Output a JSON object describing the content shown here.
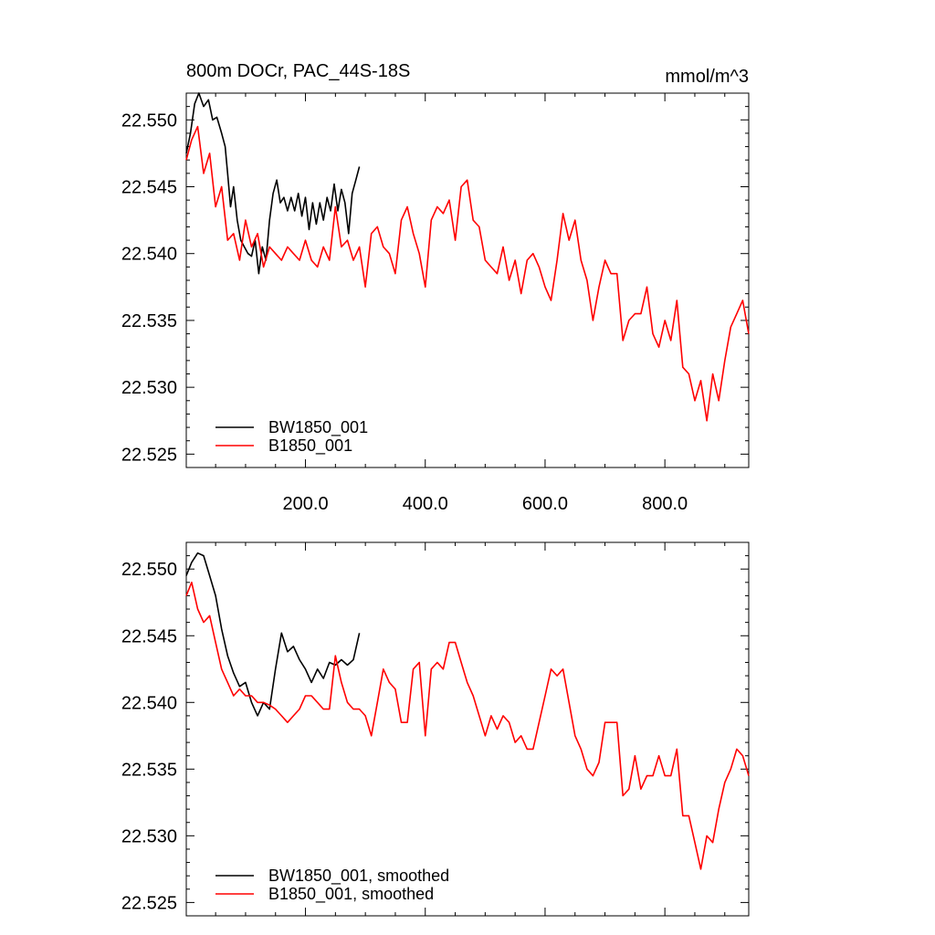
{
  "chart_data": [
    {
      "type": "line",
      "title": "800m DOCr, PAC_44S-18S",
      "units": "mmol/m^3",
      "xlim": [
        1,
        940
      ],
      "ylim": [
        22.524,
        22.552
      ],
      "xticks": [
        200,
        400,
        600,
        800
      ],
      "xtick_labels": [
        "200.0",
        "400.0",
        "600.0",
        "800.0"
      ],
      "yticks": [
        22.525,
        22.53,
        22.535,
        22.54,
        22.545,
        22.55
      ],
      "ytick_labels": [
        "22.525",
        "22.530",
        "22.535",
        "22.540",
        "22.545",
        "22.550"
      ],
      "legend_position": "bottom-left",
      "series": [
        {
          "name": "BW1850_001",
          "color": "#000000",
          "x": [
            1,
            8,
            15,
            22,
            30,
            38,
            45,
            52,
            60,
            66,
            70,
            75,
            80,
            86,
            92,
            98,
            104,
            110,
            116,
            122,
            128,
            134,
            140,
            146,
            152,
            158,
            164,
            170,
            176,
            182,
            188,
            194,
            200,
            206,
            212,
            218,
            224,
            230,
            236,
            242,
            248,
            254,
            260,
            266,
            272,
            278,
            284,
            290
          ],
          "y": [
            22.5475,
            22.549,
            22.5512,
            22.552,
            22.551,
            22.5515,
            22.55,
            22.5502,
            22.549,
            22.548,
            22.546,
            22.5435,
            22.545,
            22.5425,
            22.541,
            22.5405,
            22.54,
            22.5398,
            22.541,
            22.5385,
            22.5405,
            22.5395,
            22.5425,
            22.5445,
            22.5455,
            22.5438,
            22.5442,
            22.5432,
            22.5442,
            22.5432,
            22.5445,
            22.5428,
            22.5442,
            22.5418,
            22.5438,
            22.5422,
            22.5438,
            22.5425,
            22.5442,
            22.5432,
            22.5452,
            22.5432,
            22.5448,
            22.5438,
            22.5415,
            22.5445,
            22.5455,
            22.5465
          ]
        },
        {
          "name": "B1850_001",
          "color": "#ff0000",
          "x": [
            1,
            10,
            20,
            30,
            40,
            50,
            60,
            70,
            80,
            90,
            100,
            110,
            120,
            130,
            140,
            150,
            160,
            170,
            180,
            190,
            200,
            210,
            220,
            230,
            240,
            250,
            260,
            270,
            280,
            290,
            300,
            310,
            320,
            330,
            340,
            350,
            360,
            370,
            380,
            390,
            400,
            410,
            420,
            430,
            440,
            450,
            460,
            470,
            480,
            490,
            500,
            510,
            520,
            530,
            540,
            550,
            560,
            570,
            580,
            590,
            600,
            610,
            620,
            630,
            640,
            650,
            660,
            670,
            680,
            690,
            700,
            710,
            720,
            730,
            740,
            750,
            760,
            770,
            780,
            790,
            800,
            810,
            820,
            830,
            840,
            850,
            860,
            870,
            880,
            890,
            900,
            910,
            920,
            930,
            940
          ],
          "y": [
            22.547,
            22.5485,
            22.5495,
            22.546,
            22.5475,
            22.5435,
            22.545,
            22.541,
            22.5415,
            22.5395,
            22.5425,
            22.5405,
            22.5415,
            22.539,
            22.5405,
            22.54,
            22.5395,
            22.5405,
            22.54,
            22.5395,
            22.541,
            22.5395,
            22.539,
            22.5405,
            22.5395,
            22.5435,
            22.5405,
            22.541,
            22.5395,
            22.5405,
            22.5375,
            22.5415,
            22.542,
            22.5405,
            22.54,
            22.5385,
            22.5425,
            22.5435,
            22.5415,
            22.54,
            22.5375,
            22.5425,
            22.5435,
            22.543,
            22.544,
            22.541,
            22.545,
            22.5455,
            22.5425,
            22.542,
            22.5395,
            22.539,
            22.5385,
            22.5405,
            22.538,
            22.5395,
            22.537,
            22.5395,
            22.54,
            22.539,
            22.5375,
            22.5365,
            22.5395,
            22.543,
            22.541,
            22.5425,
            22.5395,
            22.538,
            22.535,
            22.5375,
            22.5395,
            22.5385,
            22.5385,
            22.5335,
            22.535,
            22.5355,
            22.5355,
            22.5375,
            22.534,
            22.533,
            22.535,
            22.5335,
            22.5365,
            22.5315,
            22.531,
            22.529,
            22.5305,
            22.5275,
            22.531,
            22.529,
            22.532,
            22.5345,
            22.5355,
            22.5365,
            22.534
          ]
        }
      ]
    },
    {
      "type": "line",
      "xlim": [
        1,
        940
      ],
      "ylim": [
        22.524,
        22.552
      ],
      "yticks": [
        22.525,
        22.53,
        22.535,
        22.54,
        22.545,
        22.55
      ],
      "ytick_labels": [
        "22.525",
        "22.530",
        "22.535",
        "22.540",
        "22.545",
        "22.550"
      ],
      "legend_position": "bottom-left",
      "series": [
        {
          "name": "BW1850_001, smoothed",
          "color": "#000000",
          "x": [
            1,
            10,
            20,
            30,
            40,
            50,
            60,
            70,
            80,
            90,
            100,
            110,
            120,
            130,
            140,
            150,
            160,
            170,
            180,
            190,
            200,
            210,
            220,
            230,
            240,
            250,
            260,
            270,
            280,
            290
          ],
          "y": [
            22.5495,
            22.5505,
            22.5512,
            22.551,
            22.5495,
            22.548,
            22.5455,
            22.5435,
            22.5422,
            22.5412,
            22.5415,
            22.54,
            22.539,
            22.54,
            22.5395,
            22.5425,
            22.5452,
            22.5438,
            22.5442,
            22.5432,
            22.5425,
            22.5415,
            22.5425,
            22.5418,
            22.543,
            22.5428,
            22.5432,
            22.5428,
            22.5432,
            22.5452
          ]
        },
        {
          "name": "B1850_001, smoothed",
          "color": "#ff0000",
          "x": [
            1,
            10,
            20,
            30,
            40,
            50,
            60,
            70,
            80,
            90,
            100,
            110,
            120,
            130,
            140,
            150,
            160,
            170,
            180,
            190,
            200,
            210,
            220,
            230,
            240,
            250,
            260,
            270,
            280,
            290,
            300,
            310,
            320,
            330,
            340,
            350,
            360,
            370,
            380,
            390,
            400,
            410,
            420,
            430,
            440,
            450,
            460,
            470,
            480,
            490,
            500,
            510,
            520,
            530,
            540,
            550,
            560,
            570,
            580,
            590,
            600,
            610,
            620,
            630,
            640,
            650,
            660,
            670,
            680,
            690,
            700,
            710,
            720,
            730,
            740,
            750,
            760,
            770,
            780,
            790,
            800,
            810,
            820,
            830,
            840,
            850,
            860,
            870,
            880,
            890,
            900,
            910,
            920,
            930,
            940
          ],
          "y": [
            22.548,
            22.549,
            22.547,
            22.546,
            22.5465,
            22.5445,
            22.5425,
            22.5415,
            22.5405,
            22.541,
            22.5405,
            22.5405,
            22.54,
            22.54,
            22.5398,
            22.5395,
            22.539,
            22.5385,
            22.539,
            22.5395,
            22.5405,
            22.5405,
            22.54,
            22.5395,
            22.5395,
            22.5435,
            22.5415,
            22.54,
            22.5395,
            22.5395,
            22.539,
            22.5375,
            22.54,
            22.5425,
            22.5415,
            22.541,
            22.5385,
            22.5385,
            22.5425,
            22.543,
            22.5375,
            22.5425,
            22.543,
            22.5425,
            22.5445,
            22.5445,
            22.543,
            22.5415,
            22.5405,
            22.539,
            22.5375,
            22.539,
            22.538,
            22.539,
            22.5385,
            22.537,
            22.5375,
            22.5365,
            22.5365,
            22.5385,
            22.5405,
            22.5425,
            22.542,
            22.5425,
            22.54,
            22.5375,
            22.5365,
            22.535,
            22.5345,
            22.5355,
            22.5385,
            22.5385,
            22.5385,
            22.533,
            22.5335,
            22.536,
            22.5335,
            22.5345,
            22.5345,
            22.536,
            22.5345,
            22.5345,
            22.5365,
            22.5315,
            22.5315,
            22.5295,
            22.5275,
            22.53,
            22.5295,
            22.532,
            22.534,
            22.535,
            22.5365,
            22.536,
            22.5345
          ]
        }
      ]
    }
  ]
}
